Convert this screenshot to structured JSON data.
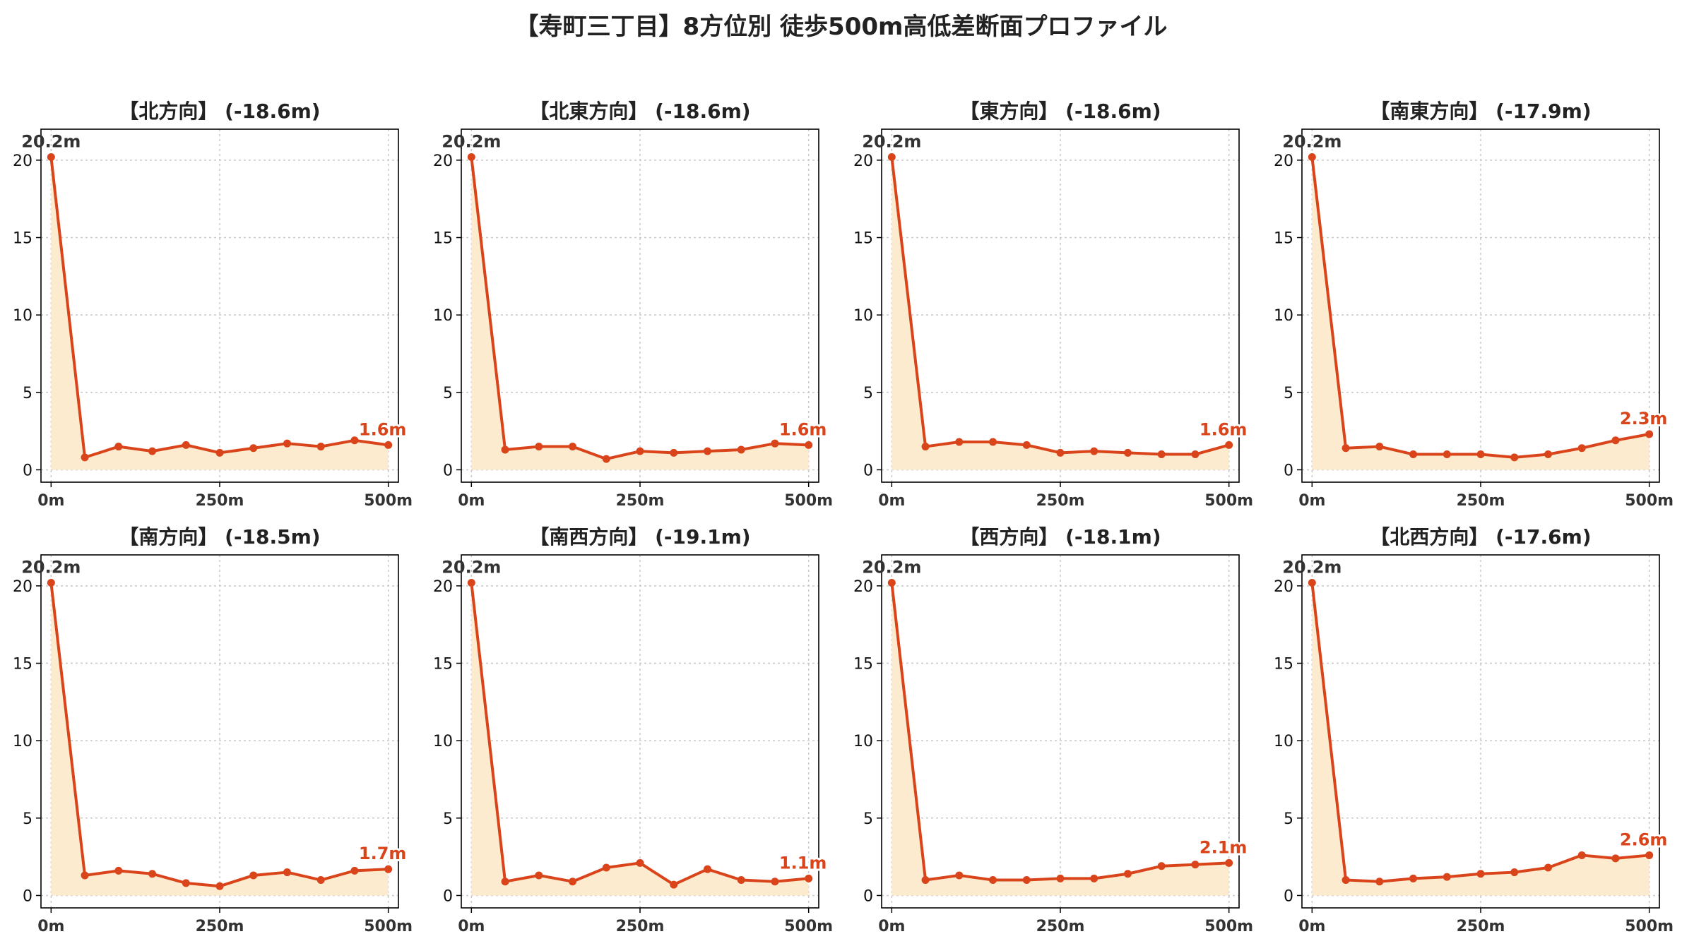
{
  "title": "【寿町三丁目】8方位別 徒歩500m高低差断面プロファイル",
  "colors": {
    "line": "#d9441a",
    "fill": "#fdebd0",
    "grid": "#c8c8c8",
    "axis": "#000000",
    "start_label": "#333333"
  },
  "chart_data": [
    {
      "type": "area",
      "title": "【北方向】 (-18.6m)",
      "start_label": "20.2m",
      "end_label": "1.6m",
      "x": [
        0,
        50,
        100,
        150,
        200,
        250,
        300,
        350,
        400,
        450,
        500
      ],
      "values": [
        20.2,
        0.8,
        1.5,
        1.2,
        1.6,
        1.1,
        1.4,
        1.7,
        1.5,
        1.9,
        1.6
      ],
      "xticks": [
        "0m",
        "250m",
        "500m"
      ],
      "yticks": [
        "0",
        "5",
        "10",
        "15",
        "20"
      ],
      "xlim": [
        -15,
        515
      ],
      "ylim": [
        -0.8,
        22
      ],
      "grid": true
    },
    {
      "type": "area",
      "title": "【北東方向】 (-18.6m)",
      "start_label": "20.2m",
      "end_label": "1.6m",
      "x": [
        0,
        50,
        100,
        150,
        200,
        250,
        300,
        350,
        400,
        450,
        500
      ],
      "values": [
        20.2,
        1.3,
        1.5,
        1.5,
        0.7,
        1.2,
        1.1,
        1.2,
        1.3,
        1.7,
        1.6
      ],
      "xticks": [
        "0m",
        "250m",
        "500m"
      ],
      "yticks": [
        "0",
        "5",
        "10",
        "15",
        "20"
      ],
      "xlim": [
        -15,
        515
      ],
      "ylim": [
        -0.8,
        22
      ],
      "grid": true
    },
    {
      "type": "area",
      "title": "【東方向】 (-18.6m)",
      "start_label": "20.2m",
      "end_label": "1.6m",
      "x": [
        0,
        50,
        100,
        150,
        200,
        250,
        300,
        350,
        400,
        450,
        500
      ],
      "values": [
        20.2,
        1.5,
        1.8,
        1.8,
        1.6,
        1.1,
        1.2,
        1.1,
        1.0,
        1.0,
        1.6
      ],
      "xticks": [
        "0m",
        "250m",
        "500m"
      ],
      "yticks": [
        "0",
        "5",
        "10",
        "15",
        "20"
      ],
      "xlim": [
        -15,
        515
      ],
      "ylim": [
        -0.8,
        22
      ],
      "grid": true
    },
    {
      "type": "area",
      "title": "【南東方向】 (-17.9m)",
      "start_label": "20.2m",
      "end_label": "2.3m",
      "x": [
        0,
        50,
        100,
        150,
        200,
        250,
        300,
        350,
        400,
        450,
        500
      ],
      "values": [
        20.2,
        1.4,
        1.5,
        1.0,
        1.0,
        1.0,
        0.8,
        1.0,
        1.4,
        1.9,
        2.3
      ],
      "xticks": [
        "0m",
        "250m",
        "500m"
      ],
      "yticks": [
        "0",
        "5",
        "10",
        "15",
        "20"
      ],
      "xlim": [
        -15,
        515
      ],
      "ylim": [
        -0.8,
        22
      ],
      "grid": true
    },
    {
      "type": "area",
      "title": "【南方向】 (-18.5m)",
      "start_label": "20.2m",
      "end_label": "1.7m",
      "x": [
        0,
        50,
        100,
        150,
        200,
        250,
        300,
        350,
        400,
        450,
        500
      ],
      "values": [
        20.2,
        1.3,
        1.6,
        1.4,
        0.8,
        0.6,
        1.3,
        1.5,
        1.0,
        1.6,
        1.7
      ],
      "xticks": [
        "0m",
        "250m",
        "500m"
      ],
      "yticks": [
        "0",
        "5",
        "10",
        "15",
        "20"
      ],
      "xlim": [
        -15,
        515
      ],
      "ylim": [
        -0.8,
        22
      ],
      "grid": true
    },
    {
      "type": "area",
      "title": "【南西方向】 (-19.1m)",
      "start_label": "20.2m",
      "end_label": "1.1m",
      "x": [
        0,
        50,
        100,
        150,
        200,
        250,
        300,
        350,
        400,
        450,
        500
      ],
      "values": [
        20.2,
        0.9,
        1.3,
        0.9,
        1.8,
        2.1,
        0.7,
        1.7,
        1.0,
        0.9,
        1.1
      ],
      "xticks": [
        "0m",
        "250m",
        "500m"
      ],
      "yticks": [
        "0",
        "5",
        "10",
        "15",
        "20"
      ],
      "xlim": [
        -15,
        515
      ],
      "ylim": [
        -0.8,
        22
      ],
      "grid": true
    },
    {
      "type": "area",
      "title": "【西方向】 (-18.1m)",
      "start_label": "20.2m",
      "end_label": "2.1m",
      "x": [
        0,
        50,
        100,
        150,
        200,
        250,
        300,
        350,
        400,
        450,
        500
      ],
      "values": [
        20.2,
        1.0,
        1.3,
        1.0,
        1.0,
        1.1,
        1.1,
        1.4,
        1.9,
        2.0,
        2.1
      ],
      "xticks": [
        "0m",
        "250m",
        "500m"
      ],
      "yticks": [
        "0",
        "5",
        "10",
        "15",
        "20"
      ],
      "xlim": [
        -15,
        515
      ],
      "ylim": [
        -0.8,
        22
      ],
      "grid": true
    },
    {
      "type": "area",
      "title": "【北西方向】 (-17.6m)",
      "start_label": "20.2m",
      "end_label": "2.6m",
      "x": [
        0,
        50,
        100,
        150,
        200,
        250,
        300,
        350,
        400,
        450,
        500
      ],
      "values": [
        20.2,
        1.0,
        0.9,
        1.1,
        1.2,
        1.4,
        1.5,
        1.8,
        2.6,
        2.4,
        2.6
      ],
      "xticks": [
        "0m",
        "250m",
        "500m"
      ],
      "yticks": [
        "0",
        "5",
        "10",
        "15",
        "20"
      ],
      "xlim": [
        -15,
        515
      ],
      "ylim": [
        -0.8,
        22
      ],
      "grid": true
    }
  ]
}
